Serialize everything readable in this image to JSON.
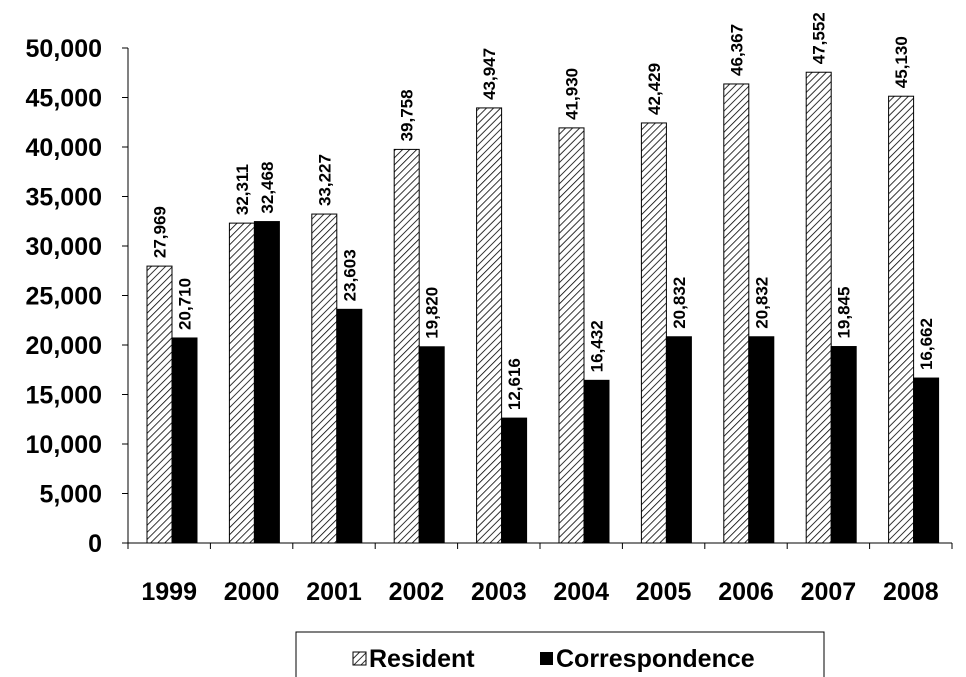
{
  "chart_data": {
    "type": "bar",
    "categories": [
      "1999",
      "2000",
      "2001",
      "2002",
      "2003",
      "2004",
      "2005",
      "2006",
      "2007",
      "2008"
    ],
    "series": [
      {
        "name": "Resident",
        "values": [
          27969,
          32311,
          33227,
          39758,
          43947,
          41930,
          42429,
          46367,
          47552,
          45130
        ],
        "labels": [
          "27,969",
          "32,311",
          "33,227",
          "39,758",
          "43,947",
          "41,930",
          "42,429",
          "46,367",
          "47,552",
          "45,130"
        ],
        "fill": "hatch"
      },
      {
        "name": "Correspondence",
        "values": [
          20710,
          32468,
          23603,
          19820,
          12616,
          16432,
          20832,
          20832,
          19845,
          16662
        ],
        "labels": [
          "20,710",
          "32,468",
          "23,603",
          "19,820",
          "12,616",
          "16,432",
          "20,832",
          "20,832",
          "19,845",
          "16,662"
        ],
        "fill": "#000000"
      }
    ],
    "ylim": [
      0,
      50000
    ],
    "yticks": [
      0,
      5000,
      10000,
      15000,
      20000,
      25000,
      30000,
      35000,
      40000,
      45000,
      50000
    ],
    "ytick_labels": [
      "0",
      "5,000",
      "10,000",
      "15,000",
      "20,000",
      "25,000",
      "30,000",
      "35,000",
      "40,000",
      "45,000",
      "50,000"
    ],
    "grid": false,
    "legend": "bottom",
    "title": "",
    "xlabel": "",
    "ylabel": ""
  }
}
